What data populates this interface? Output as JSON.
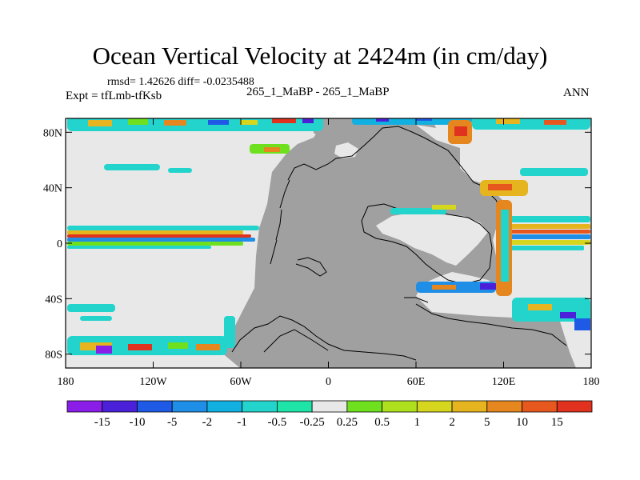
{
  "title": "Ocean Vertical Velocity at 2424m (in cm/day)",
  "stats": "rmsd= 1.42626 diff= -0.0235488",
  "expt": "Expt = tfLmb-tfKsb",
  "case": "265_1_MaBP - 265_1_MaBP",
  "season": "ANN",
  "map": {
    "lon_range": [
      -180,
      180
    ],
    "lat_range": [
      -90,
      90
    ],
    "x_ticks": [
      {
        "value": -180,
        "label": "180"
      },
      {
        "value": -120,
        "label": "120W"
      },
      {
        "value": -60,
        "label": "60W"
      },
      {
        "value": 0,
        "label": "0"
      },
      {
        "value": 60,
        "label": "60E"
      },
      {
        "value": 120,
        "label": "120E"
      },
      {
        "value": 180,
        "label": "180"
      }
    ],
    "y_ticks": [
      {
        "value": 80,
        "label": "80N"
      },
      {
        "value": 40,
        "label": "40N"
      },
      {
        "value": 0,
        "label": "0"
      },
      {
        "value": -40,
        "label": "40S"
      },
      {
        "value": -80,
        "label": "80S"
      }
    ]
  },
  "colorbar": {
    "colors": [
      "#8a1ee8",
      "#4a20d8",
      "#1e5ae6",
      "#1e8ee6",
      "#12b0e0",
      "#22d4cc",
      "#1ee4a8",
      "#e8e8e8",
      "#6ee01e",
      "#aee01e",
      "#d6d61e",
      "#e6b41e",
      "#e6861e",
      "#e6581e",
      "#e0321e"
    ],
    "labels": [
      "-15",
      "-10",
      "-5",
      "-2",
      "-1",
      "-0.5",
      "-0.25",
      "0.25",
      "0.5",
      "1",
      "2",
      "5",
      "10",
      "15"
    ]
  },
  "colors": {
    "land": "#a0a0a0",
    "near_zero": "#e8e8e8"
  }
}
